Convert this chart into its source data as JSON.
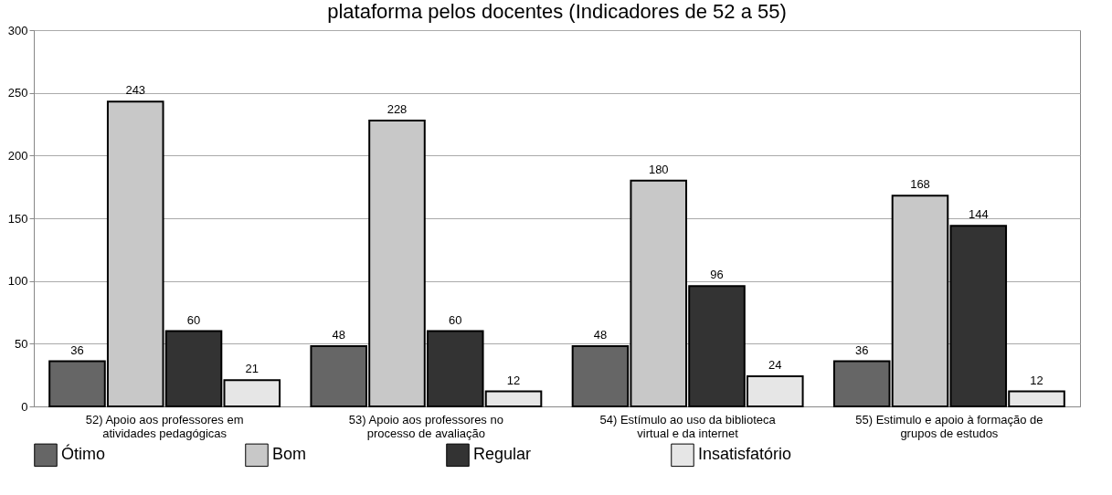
{
  "chart_data": {
    "type": "bar",
    "title": "plataforma pelos docentes (Indicadores de 52 a 55)",
    "categories": [
      "52) Apoio aos professores em atividades pedagógicas",
      "53) Apoio aos professores no processo de avaliação",
      "54) Estímulo ao uso da biblioteca virtual e da internet",
      "55) Estimulo e apoio à formação de grupos de estudos"
    ],
    "series": [
      {
        "name": "Ótimo",
        "color": "#666666",
        "values": [
          36,
          48,
          48,
          36
        ]
      },
      {
        "name": "Bom",
        "color": "#c8c8c8",
        "values": [
          243,
          228,
          180,
          168
        ]
      },
      {
        "name": "Regular",
        "color": "#333333",
        "values": [
          60,
          60,
          96,
          144
        ]
      },
      {
        "name": "Insatisfatório",
        "color": "#e6e6e6",
        "values": [
          21,
          12,
          24,
          12
        ]
      }
    ],
    "ylim": [
      0,
      300
    ],
    "yticks": [
      0,
      50,
      100,
      150,
      200,
      250,
      300
    ],
    "grid": "y",
    "legend": "bottom",
    "data_labels": true
  }
}
